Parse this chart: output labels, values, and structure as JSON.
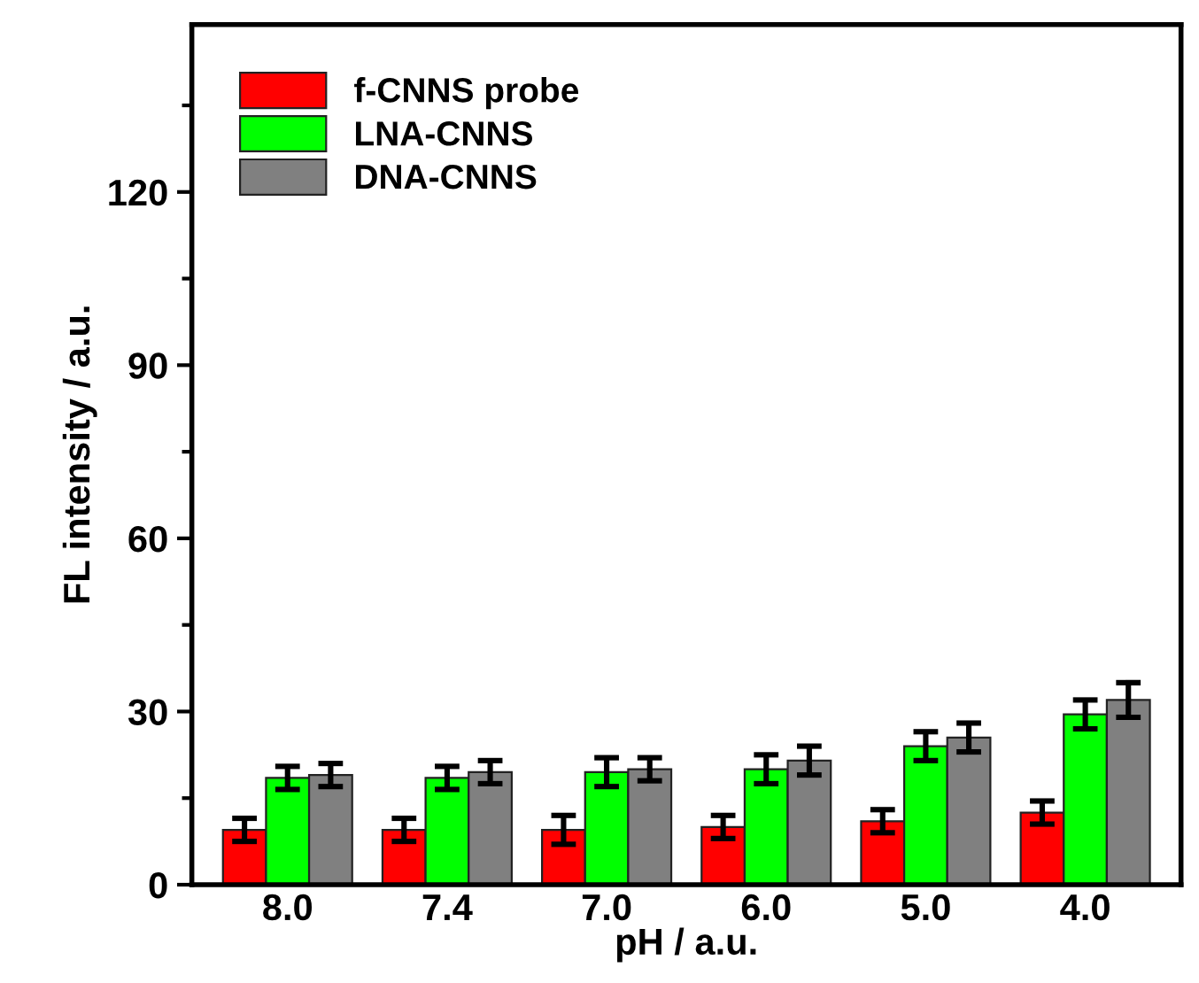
{
  "chart_data": {
    "type": "bar",
    "xlabel": "pH / a.u.",
    "ylabel": "FL intensity / a.u.",
    "categories": [
      "8.0",
      "7.4",
      "7.0",
      "6.0",
      "5.0",
      "4.0"
    ],
    "series": [
      {
        "name": "f-CNNS probe",
        "color": "#ff0000",
        "values": [
          9.5,
          9.5,
          9.5,
          10,
          11,
          12.5
        ],
        "errors": [
          2,
          2,
          2.5,
          2,
          2,
          2
        ]
      },
      {
        "name": "LNA-CNNS",
        "color": "#00ff00",
        "values": [
          18.5,
          18.5,
          19.5,
          20,
          24,
          29.5
        ],
        "errors": [
          2,
          2,
          2.5,
          2.5,
          2.5,
          2.5
        ]
      },
      {
        "name": "DNA-CNNS",
        "color": "#808080",
        "values": [
          19,
          19.5,
          20,
          21.5,
          25.5,
          32
        ],
        "errors": [
          2,
          2,
          2,
          2.5,
          2.5,
          3
        ]
      }
    ],
    "ylim": [
      0,
      149
    ],
    "yticks": [
      0,
      30,
      60,
      90,
      120
    ],
    "grid": false,
    "legend": "top left"
  }
}
